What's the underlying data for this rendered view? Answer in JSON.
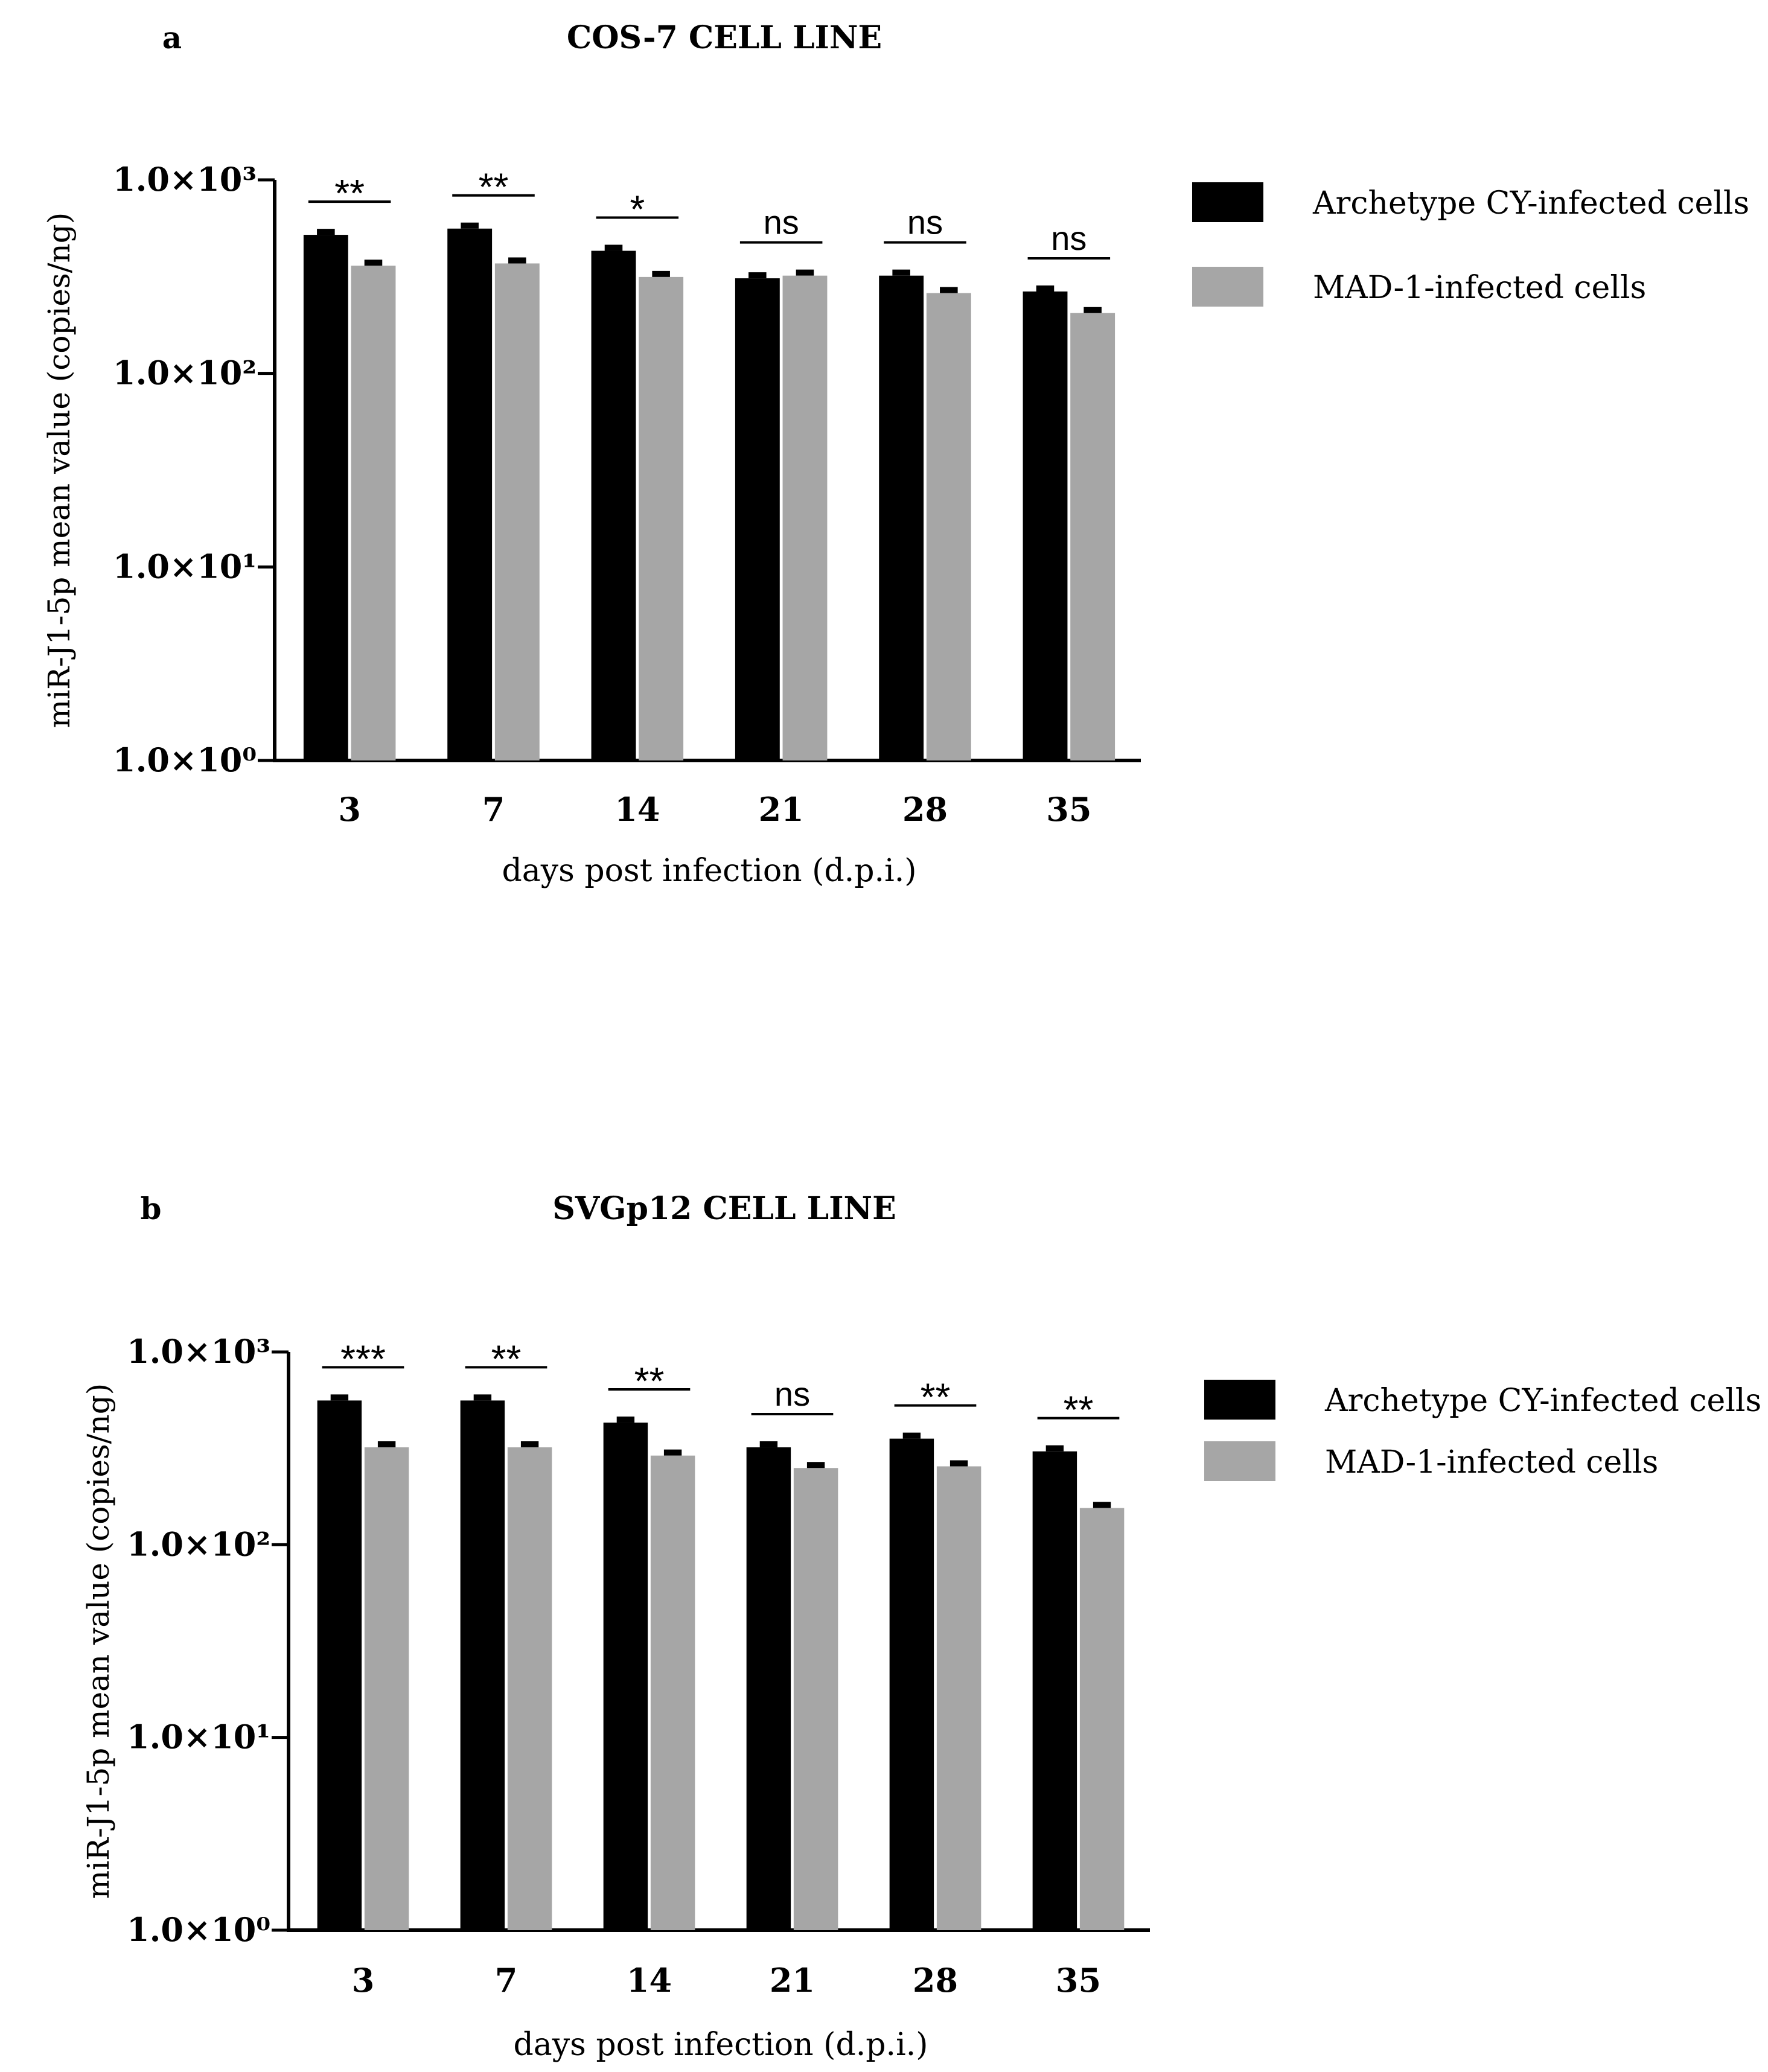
{
  "colors": {
    "archetype": "#000000",
    "mad1": "#a6a6a6",
    "axis": "#000000",
    "background": "#ffffff"
  },
  "chart_data": [
    {
      "panel": "a",
      "type": "bar",
      "title": "COS-7 CELL LINE",
      "xlabel": "days post infection (d.p.i.)",
      "ylabel": "miR-J1-5p mean value (copies/ng)",
      "yscale": "log",
      "ylim": [
        1,
        1000
      ],
      "yticks": [
        {
          "value": 1,
          "label": "1.0×10⁰"
        },
        {
          "value": 10,
          "label": "1.0×10¹"
        },
        {
          "value": 100,
          "label": "1.0×10²"
        },
        {
          "value": 1000,
          "label": "1.0×10³"
        }
      ],
      "categories": [
        "3",
        "7",
        "14",
        "21",
        "28",
        "35"
      ],
      "legend_position": "right",
      "grid": false,
      "series": [
        {
          "name": "Archetype CY-infected cells",
          "values": [
            520,
            560,
            430,
            310,
            320,
            265
          ]
        },
        {
          "name": "MAD-1-infected cells",
          "values": [
            360,
            370,
            315,
            320,
            260,
            205
          ]
        }
      ],
      "significance": [
        "**",
        "**",
        "*",
        "ns",
        "ns",
        "ns"
      ]
    },
    {
      "panel": "b",
      "type": "bar",
      "title": "SVGp12 CELL LINE",
      "xlabel": "days post infection (d.p.i.)",
      "ylabel": "miR-J1-5p mean value (copies/ng)",
      "yscale": "log",
      "ylim": [
        1,
        1000
      ],
      "yticks": [
        {
          "value": 1,
          "label": "1.0×10⁰"
        },
        {
          "value": 10,
          "label": "1.0×10¹"
        },
        {
          "value": 100,
          "label": "1.0×10²"
        },
        {
          "value": 1000,
          "label": "1.0×10³"
        }
      ],
      "categories": [
        "3",
        "7",
        "14",
        "21",
        "28",
        "35"
      ],
      "legend_position": "right",
      "grid": false,
      "series": [
        {
          "name": "Archetype CY-infected cells",
          "values": [
            560,
            560,
            430,
            320,
            355,
            305
          ]
        },
        {
          "name": "MAD-1-infected cells",
          "values": [
            320,
            320,
            290,
            250,
            255,
            155
          ]
        }
      ],
      "significance": [
        "***",
        "**",
        "**",
        "ns",
        "**",
        "**"
      ]
    }
  ]
}
